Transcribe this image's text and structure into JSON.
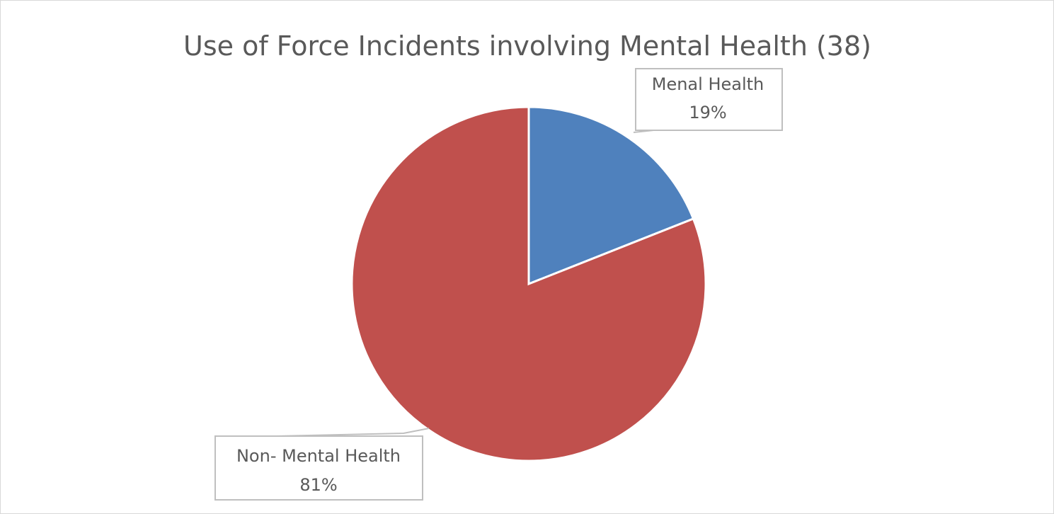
{
  "chart_data": {
    "type": "pie",
    "title": "Use of Force Incidents involving Mental Health (38)",
    "categories": [
      "Menal Health",
      "Non- Mental Health"
    ],
    "values": [
      19,
      81
    ],
    "value_labels": [
      "19%",
      "81%"
    ],
    "colors": [
      "#4f81bd",
      "#c0504d"
    ],
    "start_angle_deg": 0,
    "direction": "clockwise",
    "legend": "none",
    "data_labels": "callouts with leader lines"
  }
}
